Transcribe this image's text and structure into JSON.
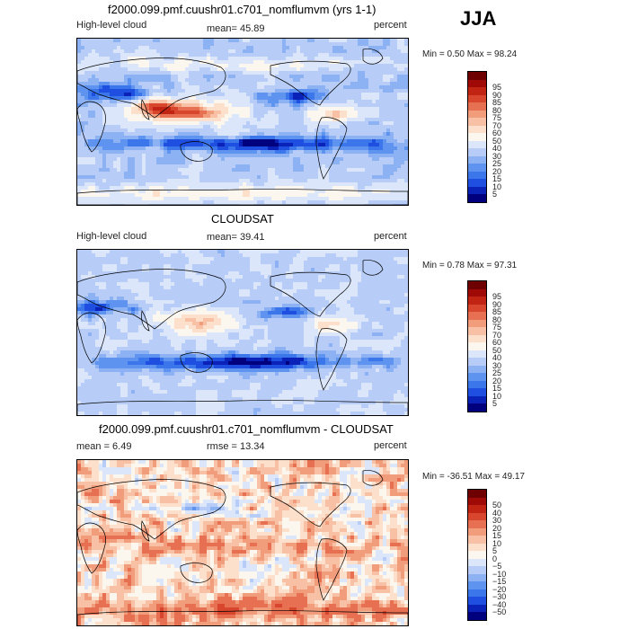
{
  "season": "JJA",
  "colors": {
    "seq": [
      "#00007f",
      "#0a22b8",
      "#1f4fe0",
      "#3b76ea",
      "#5f93f0",
      "#8cb2f4",
      "#b7cdf7",
      "#dbe6fb",
      "#fbf6ee",
      "#fde0cc",
      "#f8c1a5",
      "#f19d7c",
      "#e76f52",
      "#d8462d",
      "#c22414",
      "#a00a06",
      "#6f0000"
    ],
    "div": [
      "#00007f",
      "#0a22b8",
      "#1f4fe0",
      "#3b76ea",
      "#5f93f0",
      "#8cb2f4",
      "#b7cdf7",
      "#dbe6fb",
      "#fbf6ee",
      "#fde0cc",
      "#f8c1a5",
      "#f19d7c",
      "#e76f52",
      "#d8462d",
      "#c22414",
      "#a00a06",
      "#6f0000"
    ]
  },
  "panels": [
    {
      "title": "f2000.099.pmf.cuushr01.c701_nomflumvm (yrs 1-1)",
      "left_label": "High-level cloud",
      "center_label": "mean=  45.89",
      "right_label": "percent",
      "minmax": "Min =    0.50 Max =   98.24"
    },
    {
      "title": "CLOUDSAT",
      "left_label": "High-level cloud",
      "center_label": "mean=  39.41",
      "right_label": "percent",
      "minmax": "Min =    0.78 Max =   97.31"
    },
    {
      "title": "f2000.099.pmf.cuushr01.c701_nomflumvm - CLOUDSAT",
      "left_label": "mean =    6.49",
      "center_label": "rmse =   13.34",
      "right_label": "percent",
      "minmax": "Min = -36.51 Max =   49.17"
    }
  ],
  "chart_data": [
    {
      "type": "heatmap",
      "title": "f2000.099.pmf.cuushr01.c701_nomflumvm (yrs 1-1)",
      "variable": "High-level cloud",
      "units": "percent",
      "mean": 45.89,
      "min": 0.5,
      "max": 98.24,
      "colorbar_levels": [
        5,
        10,
        15,
        20,
        25,
        30,
        40,
        50,
        60,
        70,
        75,
        80,
        85,
        90,
        95
      ]
    },
    {
      "type": "heatmap",
      "title": "CLOUDSAT",
      "variable": "High-level cloud",
      "units": "percent",
      "mean": 39.41,
      "min": 0.78,
      "max": 97.31,
      "colorbar_levels": [
        5,
        10,
        15,
        20,
        25,
        30,
        40,
        50,
        60,
        70,
        75,
        80,
        85,
        90,
        95
      ]
    },
    {
      "type": "heatmap",
      "title": "f2000.099.pmf.cuushr01.c701_nomflumvm - CLOUDSAT",
      "units": "percent",
      "mean": 6.49,
      "rmse": 13.34,
      "min": -36.51,
      "max": 49.17,
      "colorbar_levels": [
        -50,
        -40,
        -30,
        -20,
        -15,
        -10,
        -5,
        0,
        5,
        10,
        15,
        20,
        30,
        40,
        50
      ]
    }
  ]
}
